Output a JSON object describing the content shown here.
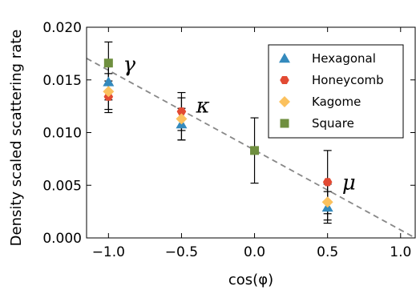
{
  "chart_data": {
    "type": "scatter",
    "title": "",
    "xlabel": "cos(φ)",
    "ylabel": "Density scaled scattering rate",
    "xlim": [
      -1.15,
      1.1
    ],
    "ylim": [
      0.0,
      0.02
    ],
    "xticks": [
      -1.0,
      -0.5,
      0.0,
      0.5,
      1.0
    ],
    "xtick_labels": [
      "−1.0",
      "−0.5",
      "0.0",
      "0.5",
      "1.0"
    ],
    "yticks": [
      0.0,
      0.005,
      0.01,
      0.015,
      0.02
    ],
    "ytick_labels": [
      "0.000",
      "0.005",
      "0.010",
      "0.015",
      "0.020"
    ],
    "grid": false,
    "legend_position": "top-right",
    "series": [
      {
        "name": "Hexagonal",
        "marker": "triangle",
        "color": "#348ABD",
        "points": [
          {
            "x": -1.0,
            "y": 0.0148,
            "yerr": 0.0017
          },
          {
            "x": -0.5,
            "y": 0.0108,
            "yerr": 0.0015
          },
          {
            "x": 0.5,
            "y": 0.0029,
            "yerr": 0.0015
          }
        ]
      },
      {
        "name": "Honeycomb",
        "marker": "hexagon",
        "color": "#E24A33",
        "points": [
          {
            "x": -1.0,
            "y": 0.0134,
            "yerr": 0.0015
          },
          {
            "x": -0.5,
            "y": 0.012,
            "yerr": 0.0018
          },
          {
            "x": 0.5,
            "y": 0.0053,
            "yerr": 0.003
          }
        ]
      },
      {
        "name": "Kagome",
        "marker": "diamond",
        "color": "#FBC15E",
        "points": [
          {
            "x": -1.0,
            "y": 0.0139,
            "yerr": 0.0017
          },
          {
            "x": -0.5,
            "y": 0.0113,
            "yerr": 0.002
          },
          {
            "x": 0.5,
            "y": 0.0034,
            "yerr": 0.0017
          }
        ]
      },
      {
        "name": "Square",
        "marker": "square",
        "color": "#6F8F3F",
        "points": [
          {
            "x": -1.0,
            "y": 0.0166,
            "yerr": 0.002
          },
          {
            "x": 0.0,
            "y": 0.0083,
            "yerr": 0.0031
          }
        ]
      }
    ],
    "fit_line": {
      "style": "dashed",
      "color": "#888888",
      "from": [
        -1.15,
        0.01705
      ],
      "to": [
        1.1,
        0.0
      ]
    },
    "annotations": [
      {
        "text": "γ",
        "x": -0.9,
        "y": 0.0158
      },
      {
        "text": "κ",
        "x": -0.4,
        "y": 0.0119
      },
      {
        "text": "μ",
        "x": 0.6,
        "y": 0.0046
      }
    ]
  }
}
